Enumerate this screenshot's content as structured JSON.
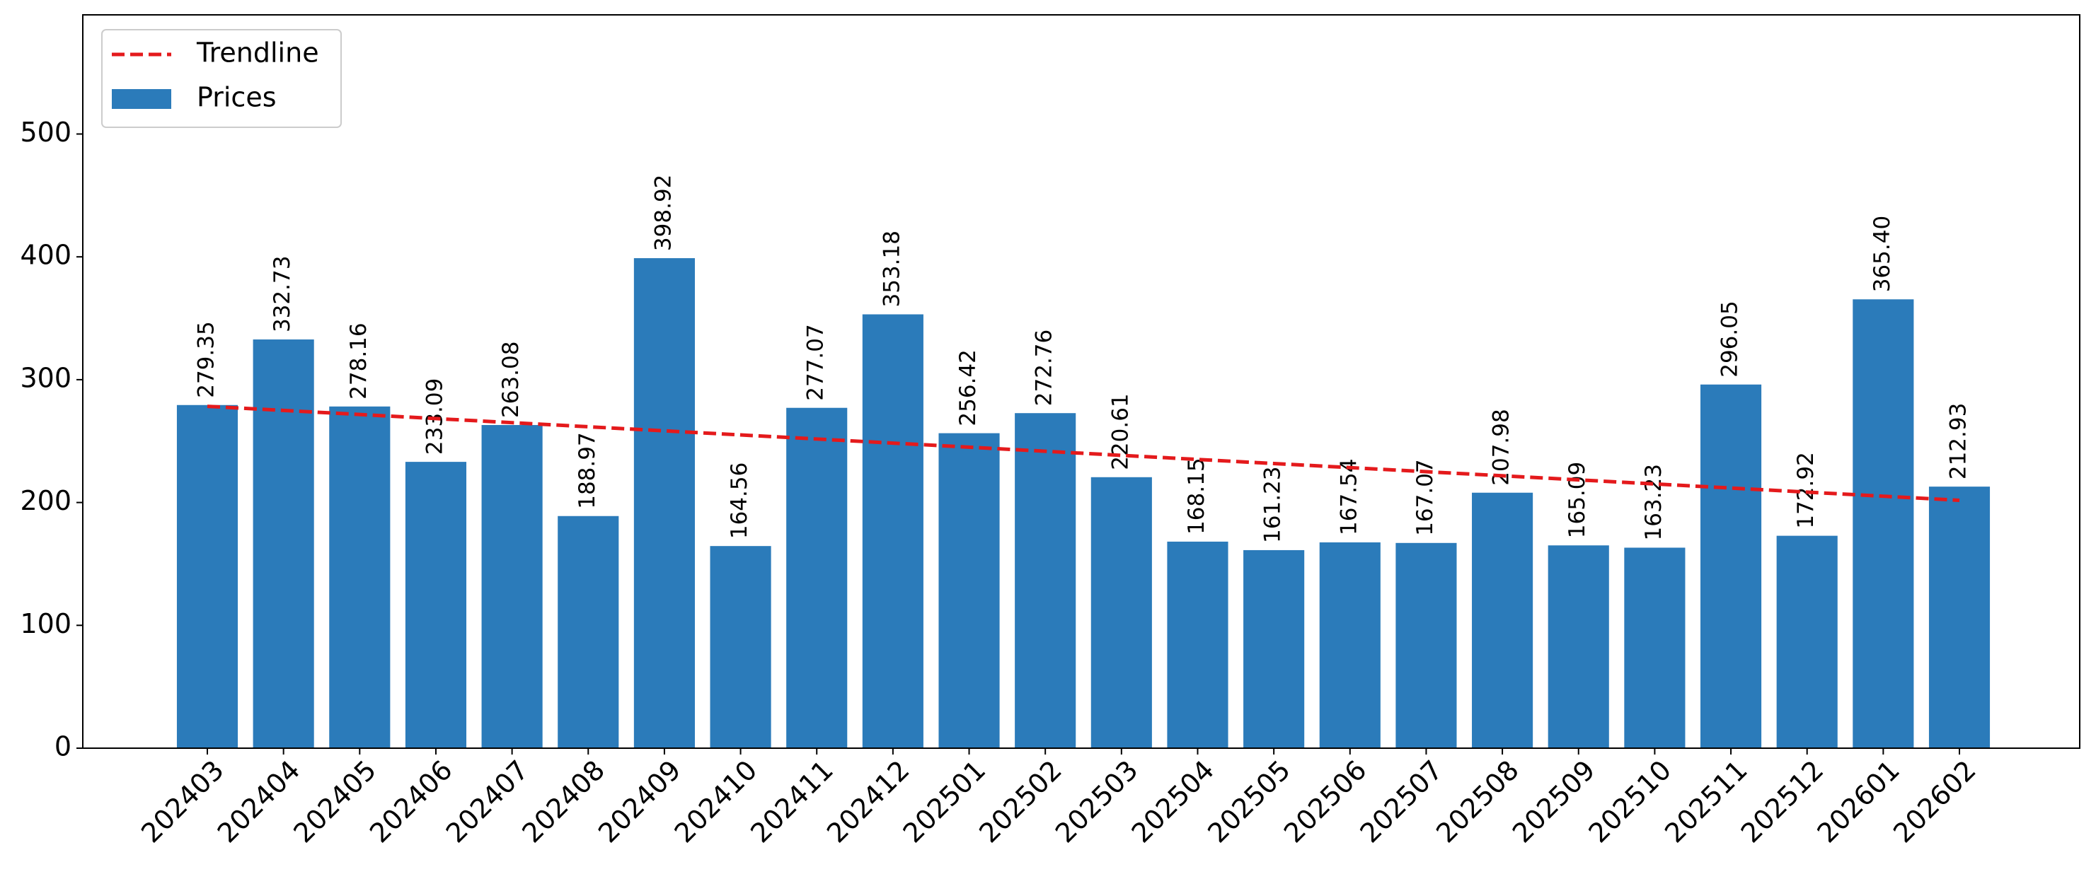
{
  "chart_data": {
    "type": "bar",
    "categories": [
      "202403",
      "202404",
      "202405",
      "202406",
      "202407",
      "202408",
      "202409",
      "202410",
      "202411",
      "202412",
      "202501",
      "202502",
      "202503",
      "202504",
      "202505",
      "202506",
      "202507",
      "202508",
      "202509",
      "202510",
      "202511",
      "202512",
      "202601",
      "202602"
    ],
    "series": [
      {
        "name": "Prices",
        "type": "bar",
        "color": "#2b7bba",
        "values": [
          279.35,
          332.73,
          278.16,
          233.09,
          263.08,
          188.97,
          398.92,
          164.56,
          277.07,
          353.18,
          256.42,
          272.76,
          220.61,
          168.15,
          161.23,
          167.54,
          167.07,
          207.98,
          165.09,
          163.23,
          296.05,
          172.92,
          365.4,
          212.93
        ],
        "value_labels": [
          "279.35",
          "332.73",
          "278.16",
          "233.09",
          "263.08",
          "188.97",
          "398.92",
          "164.56",
          "277.07",
          "353.18",
          "256.42",
          "272.76",
          "220.61",
          "168.15",
          "161.23",
          "167.54",
          "167.07",
          "207.98",
          "165.09",
          "163.23",
          "296.05",
          "172.92",
          "365.40",
          "212.93"
        ]
      },
      {
        "name": "Trendline",
        "type": "line",
        "color": "#e41a1c",
        "dashed": true,
        "values": [
          278.3,
          274.97,
          271.65,
          268.32,
          265.0,
          261.67,
          258.34,
          255.02,
          251.69,
          248.37,
          245.04,
          241.71,
          238.39,
          235.06,
          231.74,
          228.41,
          225.08,
          221.76,
          218.43,
          215.11,
          211.78,
          208.45,
          205.13,
          201.8
        ]
      }
    ],
    "ylim": [
      0,
      597
    ],
    "yticks": [
      0,
      100,
      200,
      300,
      400,
      500
    ],
    "legend": "upper left"
  }
}
